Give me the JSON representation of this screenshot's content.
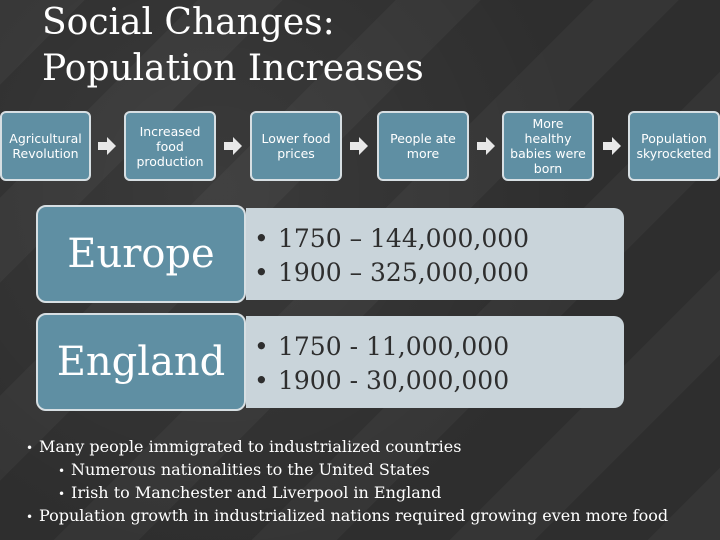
{
  "slide": {
    "title_line1": "Social Changes:",
    "title_line2": "Population Increases"
  },
  "flow": [
    {
      "label": "Agricultural Revolution"
    },
    {
      "label": "Increased food production"
    },
    {
      "label": "Lower food prices"
    },
    {
      "label": "People ate more"
    },
    {
      "label": "More healthy babies were born"
    },
    {
      "label": "Population skyrocketed"
    }
  ],
  "regions": [
    {
      "name": "Europe",
      "items": [
        "1750 – 144,000,000",
        "1900 – 325,000,000"
      ]
    },
    {
      "name": "England",
      "items": [
        "1750 - 11,000,000",
        "1900 - 30,000,000"
      ]
    }
  ],
  "notes": {
    "n1": "Many people immigrated to industrialized countries",
    "n1a": "Numerous nationalities to the United States",
    "n1b": "Irish to Manchester and Liverpool in England",
    "n2": "Population growth in industrialized nations required growing even more food"
  },
  "colors": {
    "box": "#5f8fa3",
    "card": "#c9d4da",
    "background": "#2e2e2e"
  }
}
